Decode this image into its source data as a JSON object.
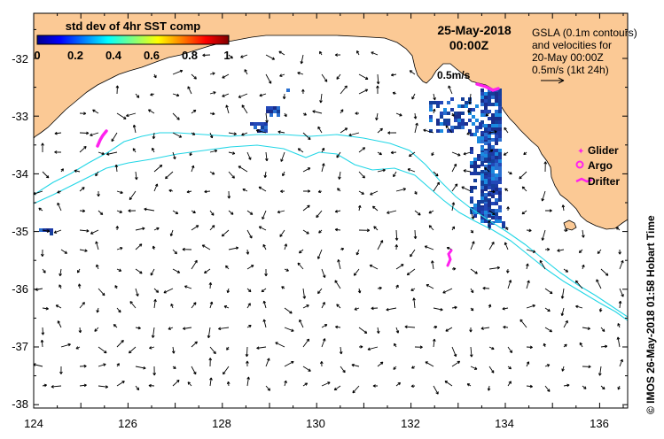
{
  "map": {
    "date_line": "25-May-2018",
    "time_line": "00:00Z",
    "gsla_note": [
      "GSLA (0.1m contours)",
      "and velocities for",
      "20-May 00:00Z",
      "0.5m/s (1kt 24h)"
    ],
    "scale_label": "0.5m/s",
    "credit": "©  IMOS 26-May-2018 01:58 Hobart Time",
    "lon_ticks": [
      "124",
      "126",
      "128",
      "130",
      "132",
      "134",
      "136"
    ],
    "lat_ticks": [
      "-32",
      "-33",
      "-34",
      "-35",
      "-36",
      "-37",
      "-38"
    ],
    "lon_range": [
      124,
      136.6
    ],
    "lat_range": [
      -31.4,
      -38.1
    ]
  },
  "colorbar": {
    "title": "std dev of 4hr SST comp",
    "ticks": [
      "0",
      "0.2",
      "0.4",
      "0.6",
      "0.8",
      "1"
    ],
    "range": [
      0,
      1
    ]
  },
  "legend": {
    "items": [
      {
        "label": "Glider",
        "symbol": "star"
      },
      {
        "label": "Argo",
        "symbol": "circle"
      },
      {
        "label": "Drifter",
        "symbol": "line"
      }
    ]
  },
  "colors": {
    "land": "#fbc995",
    "ocean": "#ffffff",
    "contour": "#22d6e6",
    "obs_marker": "#ff22ee",
    "sst_patch": "#1c3aa6"
  }
}
